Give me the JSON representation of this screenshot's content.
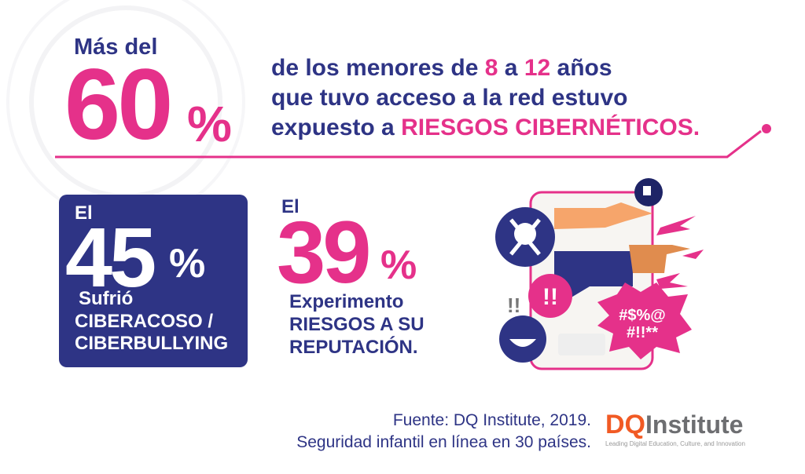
{
  "headline": {
    "intro": "Más del",
    "number": "60",
    "percent": "%",
    "line1_a": "de los menores de ",
    "line1_b": "8",
    "line1_c": " a ",
    "line1_d": "12",
    "line1_e": " años",
    "line2": "que tuvo acceso a la red estuvo",
    "line3_a": "expuesto a ",
    "line3_b": "RIESGOS CIBERNÉTICOS."
  },
  "stat1": {
    "prefix": "El",
    "number": "45",
    "percent": "%",
    "line1": "Sufrió",
    "line2": "CIBERACOSO /",
    "line3": "CIBERBULLYING"
  },
  "stat2": {
    "prefix": "El",
    "number": "39",
    "percent": "%",
    "line1": "Experimento",
    "line2": "RIESGOS A SU",
    "line3": "REPUTACIÓN."
  },
  "illustration": {
    "bubble_line1": "#$%@",
    "bubble_line2": "#!!**",
    "alert": "!!",
    "side_alert": "!!"
  },
  "footer": {
    "source": "Fuente: DQ Institute, 2019.",
    "title": "Seguridad infantil en línea en 30 países."
  },
  "logo": {
    "dq": "DQ",
    "name": "Institute",
    "tagline": "Leading Digital Education, Culture, and Innovation"
  },
  "colors": {
    "navy": "#2e3485",
    "pink": "#e5318a"
  }
}
